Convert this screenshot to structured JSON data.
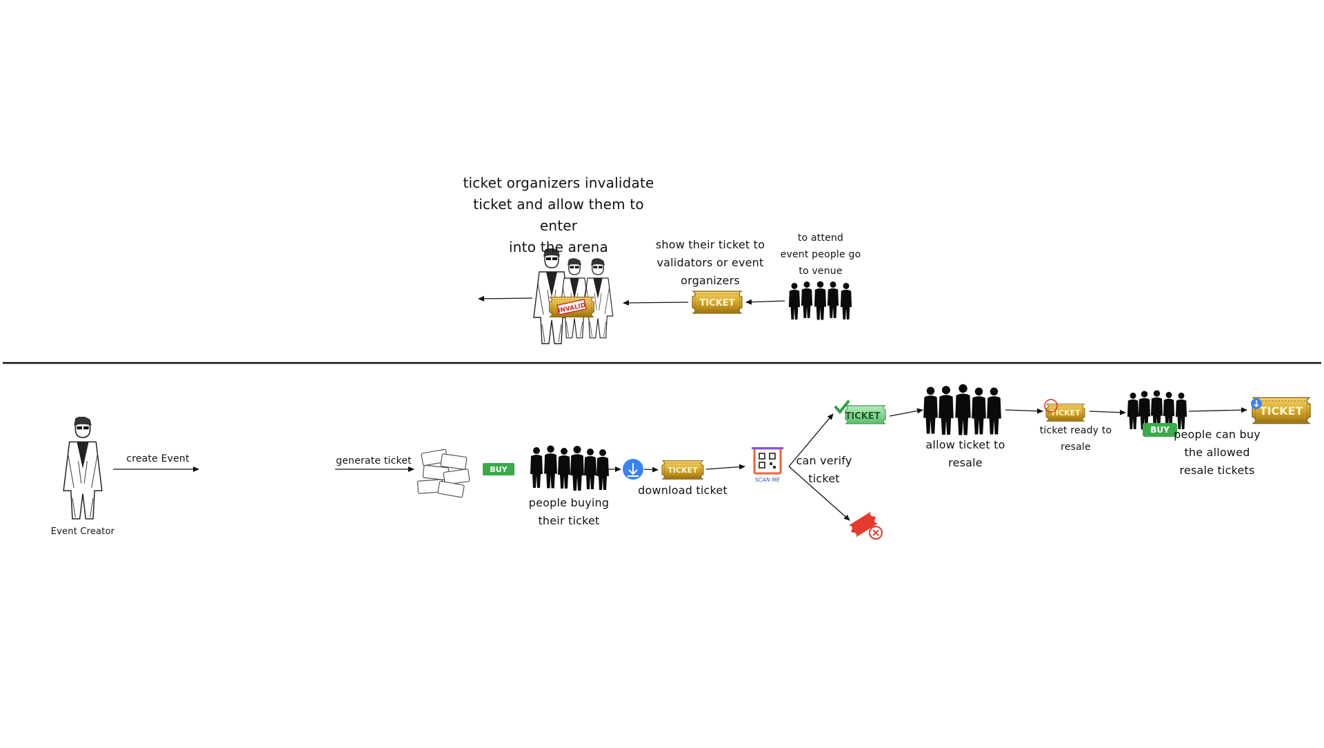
{
  "top_flow": {
    "organizer_note": "ticket organizers invalidate\nticket and allow them to enter\ninto the arena",
    "show_ticket_note": "show their ticket to\nvalidators or event\norganizers",
    "attend_note": "to attend\nevent people go\nto venue",
    "ticket_label": "TICKET",
    "invalid_stamp": "INVALID"
  },
  "bottom_flow": {
    "event_creator_label": "Event Creator",
    "create_event_label": "create Event",
    "generate_ticket_label": "generate ticket",
    "buy_label": "BUY",
    "people_buying_label": "people buying\ntheir ticket",
    "download_ticket_label": "download ticket",
    "ticket_label": "TICKET",
    "scan_me_label": "SCAN ME",
    "can_verify_label": "can verify\nticket",
    "allow_resale_label": "allow ticket to\nresale",
    "ready_resale_label": "ticket ready to\nresale",
    "resale_buy_label": "BUY",
    "people_buy_resale_label": "people can buy\nthe allowed\nresale tickets"
  },
  "colors": {
    "gold": "#d4a62a",
    "green_ticket": "#7fd38c",
    "buy_green": "#3aaa4a",
    "download_blue": "#3b82f6",
    "reject_red": "#e63a2e",
    "qr_frame": "#7b5cd6"
  },
  "icons": [
    "event-creator-figure",
    "stage-icon",
    "ticket-stack-icon",
    "crowd-icon",
    "download-icon",
    "qr-code-icon",
    "check-icon",
    "reject-ticket-icon",
    "band-members-figure",
    "invalid-ticket-icon"
  ]
}
